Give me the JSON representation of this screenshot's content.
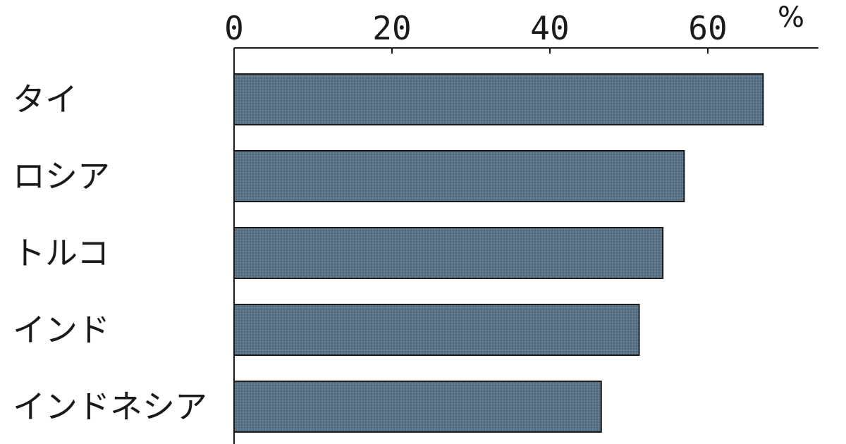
{
  "chart_data": {
    "type": "bar",
    "orientation": "horizontal",
    "categories": [
      "タイ",
      "ロシア",
      "トルコ",
      "インド",
      "インドネシア"
    ],
    "values": [
      67,
      57,
      54.3,
      51.3,
      46.5
    ],
    "xlim": [
      0,
      74
    ],
    "ticks": [
      0,
      20,
      40,
      60
    ],
    "tick_labels": [
      "0",
      "20",
      "40",
      "60"
    ],
    "unit": "%",
    "axis_position": "top",
    "grid": false,
    "bar_color": "#5b7386"
  }
}
